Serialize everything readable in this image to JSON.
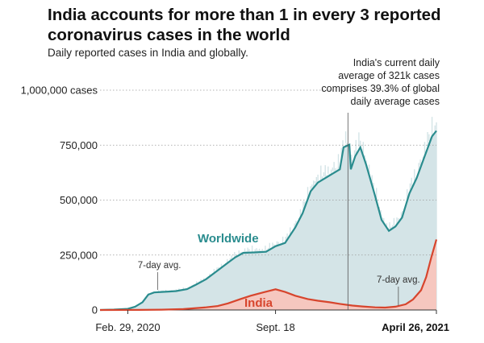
{
  "header": {
    "title": "India accounts for more than 1 in every 3 reported coronavirus cases in the world",
    "subtitle": "Daily reported cases in India and globally."
  },
  "colors": {
    "world_line": "#2a8c8e",
    "world_fill": "#d4e4e7",
    "world_daily": "#ffffff",
    "india_line": "#d7452d",
    "india_fill": "#f6c7bf",
    "axis": "#333333"
  },
  "annotations": {
    "current": [
      "India's current daily",
      "average of 321k cases",
      "comprises 39.3% of global",
      "daily average cases"
    ],
    "avg_world": "7-day avg.",
    "avg_india": "7-day avg."
  },
  "chart_data": {
    "type": "area",
    "title": "India accounts for more than 1 in every 3 reported coronavirus cases in the world",
    "subtitle": "Daily reported cases in India and globally.",
    "xlabel": "",
    "ylabel": "",
    "x_start": "2020-01-22",
    "x_end": "2021-04-26",
    "ylim": [
      0,
      1000000
    ],
    "y_ticks": [
      {
        "value": 0,
        "label": "0"
      },
      {
        "value": 250000,
        "label": "250,000"
      },
      {
        "value": 500000,
        "label": "500,000"
      },
      {
        "value": 750000,
        "label": "750,000"
      },
      {
        "value": 1000000,
        "label": "1,000,000 cases"
      }
    ],
    "x_ticks": [
      {
        "date": "2020-02-29",
        "label": "Feb. 29, 2020",
        "bold": false
      },
      {
        "date": "2020-09-18",
        "label": "Sept. 18",
        "bold": false
      },
      {
        "date": "2021-04-26",
        "label": "April 26, 2021",
        "bold": true
      }
    ],
    "series": [
      {
        "name": "Worldwide",
        "points": [
          [
            "2020-01-22",
            0
          ],
          [
            "2020-02-10",
            2000
          ],
          [
            "2020-02-29",
            5000
          ],
          [
            "2020-03-10",
            15000
          ],
          [
            "2020-03-20",
            35000
          ],
          [
            "2020-03-28",
            70000
          ],
          [
            "2020-04-05",
            80000
          ],
          [
            "2020-04-15",
            82000
          ],
          [
            "2020-04-25",
            84000
          ],
          [
            "2020-05-05",
            86000
          ],
          [
            "2020-05-20",
            95000
          ],
          [
            "2020-06-01",
            115000
          ],
          [
            "2020-06-15",
            140000
          ],
          [
            "2020-07-01",
            180000
          ],
          [
            "2020-07-15",
            215000
          ],
          [
            "2020-07-25",
            240000
          ],
          [
            "2020-08-05",
            260000
          ],
          [
            "2020-08-20",
            262000
          ],
          [
            "2020-09-05",
            265000
          ],
          [
            "2020-09-18",
            290000
          ],
          [
            "2020-10-01",
            305000
          ],
          [
            "2020-10-15",
            375000
          ],
          [
            "2020-10-25",
            440000
          ],
          [
            "2020-11-05",
            540000
          ],
          [
            "2020-11-15",
            580000
          ],
          [
            "2020-11-25",
            600000
          ],
          [
            "2020-12-05",
            620000
          ],
          [
            "2020-12-15",
            640000
          ],
          [
            "2020-12-20",
            740000
          ],
          [
            "2020-12-28",
            752000
          ],
          [
            "2020-12-30",
            640000
          ],
          [
            "2021-01-05",
            700000
          ],
          [
            "2021-01-12",
            740000
          ],
          [
            "2021-01-20",
            660000
          ],
          [
            "2021-02-01",
            520000
          ],
          [
            "2021-02-10",
            410000
          ],
          [
            "2021-02-20",
            360000
          ],
          [
            "2021-03-01",
            380000
          ],
          [
            "2021-03-10",
            420000
          ],
          [
            "2021-03-20",
            530000
          ],
          [
            "2021-03-30",
            600000
          ],
          [
            "2021-04-10",
            700000
          ],
          [
            "2021-04-20",
            790000
          ],
          [
            "2021-04-26",
            815000
          ]
        ]
      },
      {
        "name": "India",
        "points": [
          [
            "2020-01-22",
            0
          ],
          [
            "2020-03-15",
            500
          ],
          [
            "2020-04-15",
            1500
          ],
          [
            "2020-05-15",
            4000
          ],
          [
            "2020-06-15",
            12000
          ],
          [
            "2020-07-01",
            18000
          ],
          [
            "2020-07-15",
            30000
          ],
          [
            "2020-08-01",
            50000
          ],
          [
            "2020-08-15",
            65000
          ],
          [
            "2020-09-01",
            80000
          ],
          [
            "2020-09-18",
            94000
          ],
          [
            "2020-10-01",
            82000
          ],
          [
            "2020-10-15",
            65000
          ],
          [
            "2020-11-01",
            50000
          ],
          [
            "2020-11-15",
            42000
          ],
          [
            "2020-12-01",
            35000
          ],
          [
            "2020-12-15",
            28000
          ],
          [
            "2021-01-01",
            20000
          ],
          [
            "2021-01-15",
            16000
          ],
          [
            "2021-02-01",
            12000
          ],
          [
            "2021-02-15",
            11000
          ],
          [
            "2021-03-01",
            15000
          ],
          [
            "2021-03-15",
            26000
          ],
          [
            "2021-03-25",
            48000
          ],
          [
            "2021-04-05",
            90000
          ],
          [
            "2021-04-12",
            150000
          ],
          [
            "2021-04-19",
            240000
          ],
          [
            "2021-04-26",
            321000
          ]
        ]
      }
    ],
    "legend": "inline labels"
  }
}
